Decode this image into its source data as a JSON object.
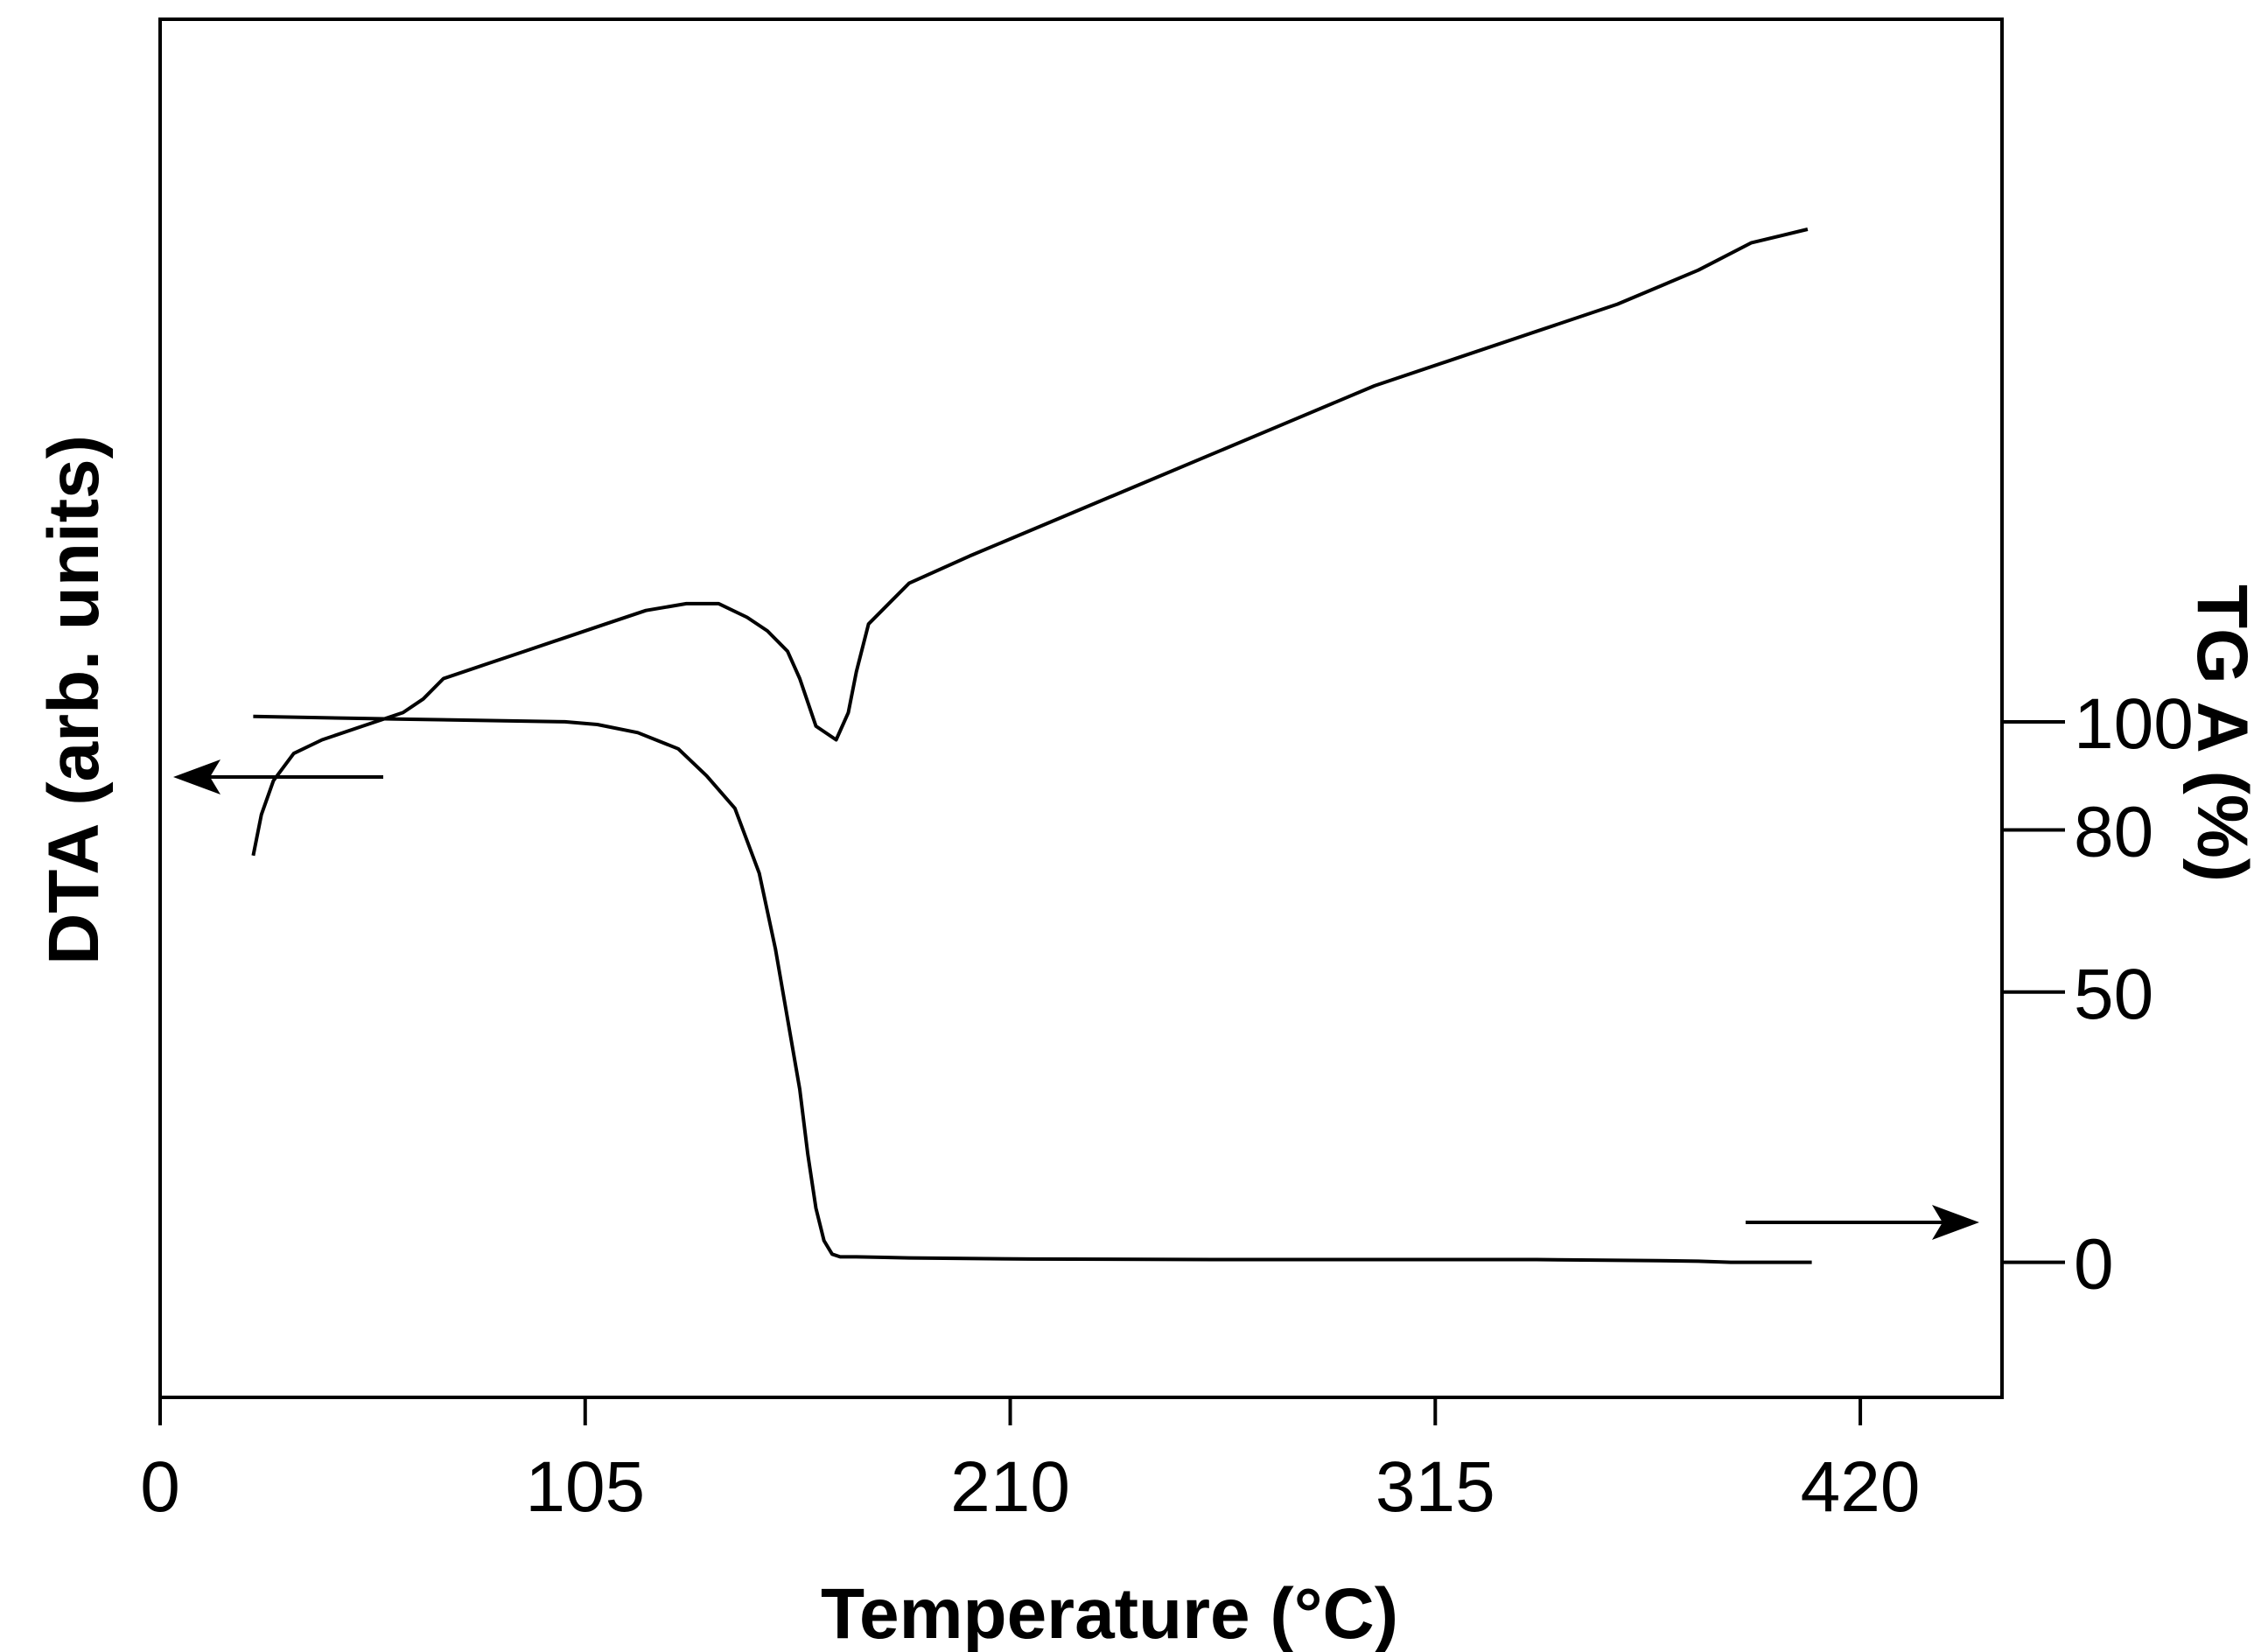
{
  "chart_data": {
    "type": "line",
    "xlabel": "Temperature (°C)",
    "ylabel_left": "DTA (arb. units)",
    "ylabel_right": "TG A (%)",
    "xlim": [
      0,
      455
    ],
    "x_ticks": [
      0,
      105,
      210,
      315,
      420
    ],
    "x_tick_labels": [
      "0",
      "105",
      "210",
      "315",
      "420"
    ],
    "y_right_lim": [
      -25,
      230
    ],
    "y_right_ticks": [
      0,
      50,
      80,
      100
    ],
    "y_right_tick_labels": [
      "0",
      "50",
      "80",
      "100"
    ],
    "grid": false,
    "legend": "none",
    "annotations": [
      {
        "type": "arrow",
        "direction": "left",
        "meaning": "DTA curve uses left axis"
      },
      {
        "type": "arrow",
        "direction": "right",
        "meaning": "TGA curve uses right axis"
      }
    ],
    "series": [
      {
        "axis": "right",
        "color": "#000000",
        "x": [
          23,
          60,
          100,
          108,
          118,
          128,
          135,
          142,
          148,
          152,
          155,
          158,
          160,
          162,
          164,
          166,
          168,
          172,
          185,
          215,
          260,
          300,
          340,
          370,
          380,
          388,
          408
        ],
        "y": [
          101,
          100.5,
          100,
          99.5,
          98,
          95,
          90,
          84,
          72,
          58,
          45,
          32,
          20,
          10,
          4,
          1.5,
          1,
          1,
          0.8,
          0.6,
          0.5,
          0.5,
          0.5,
          0.3,
          0.2,
          0,
          0
        ]
      },
      {
        "axis": "left",
        "color": "#000000",
        "x": [
          23,
          25,
          28,
          33,
          40,
          50,
          60,
          65,
          70,
          80,
          90,
          100,
          110,
          120,
          130,
          138,
          145,
          150,
          155,
          158,
          162,
          167,
          170,
          172,
          175,
          185,
          200,
          220,
          240,
          260,
          280,
          300,
          320,
          340,
          360,
          380,
          393,
          407
        ],
        "y": [
          0.08,
          0.14,
          0.19,
          0.23,
          0.25,
          0.27,
          0.29,
          0.31,
          0.34,
          0.36,
          0.38,
          0.4,
          0.42,
          0.44,
          0.45,
          0.45,
          0.43,
          0.41,
          0.38,
          0.34,
          0.27,
          0.25,
          0.29,
          0.35,
          0.42,
          0.48,
          0.52,
          0.57,
          0.62,
          0.67,
          0.72,
          0.77,
          0.81,
          0.85,
          0.89,
          0.94,
          0.98,
          1.0
        ]
      }
    ]
  }
}
